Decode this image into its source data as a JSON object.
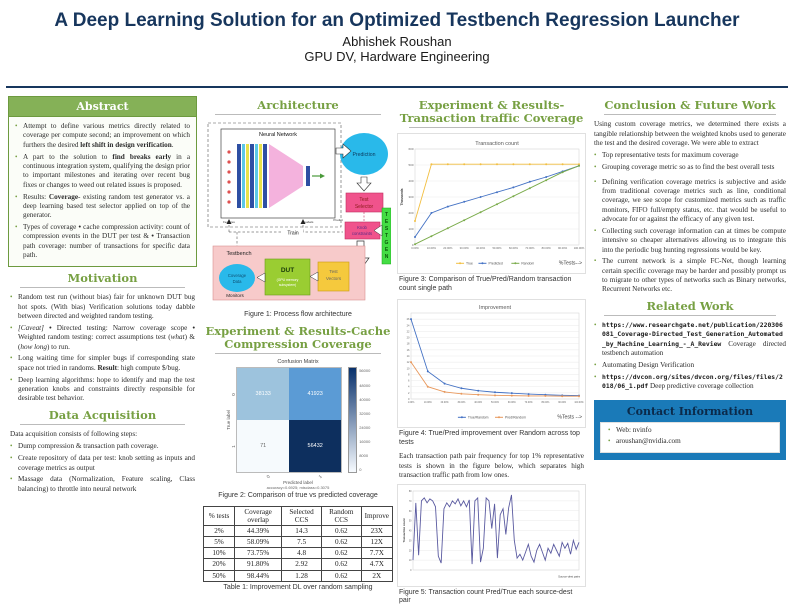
{
  "poster": {
    "title": "A Deep Learning Solution for an Optimized Testbench Regression Launcher",
    "author": "Abhishek Roushan",
    "affiliation": "GPU DV, Hardware Engineering"
  },
  "abstract": {
    "title": "Abstract",
    "items": [
      "Attempt to define various metrics directly related to coverage per compute second; an improvement on which furthers the desired <b>left shift in design verification</b>.",
      "A part to the solution to <b>find breaks early</b> in a continuous integration system, qualifying the design prior to important milestones and iterating over recent bug fixes or changes to weed out related issues is proposed.",
      "Results: <b>Coverage</b>- existing random test generator vs. a deep learning based test selector applied on top of the generator.",
      "Types of coverage <b>•</b> cache compression activity: count of compression events in the DUT per test &amp; <b>•</b> Transaction path coverage: number of transactions for specific data path."
    ]
  },
  "motivation": {
    "title": "Motivation",
    "items": [
      "Random test run (without bias) fair for unknown DUT bug hot spots. (With bias) Verification solutions today dabble between directed and weighted random testing.",
      "<i>[Caveat]</i> <b>•</b> Directed testing: Narrow coverage scope <b>•</b> Weighted random testing: correct assumptions test (<i>what</i>) &amp; (<i>how long</i>) to run.",
      "Long waiting time for simpler bugs if corresponding state space not tried in randoms. <b>Result</b>: high compute $/bug.",
      "Deep learning algorithms: hope to identify and map the test generation knobs and constraints directly responsible for desirable test behavior."
    ]
  },
  "data_acquisition": {
    "title": "Data Acquisition",
    "intro": "Data acquisition consists of following steps:",
    "items": [
      "Dump compression & transaction path coverage.",
      "Create repository of data per test: knob setting as inputs and coverage metrics as output",
      "Massage data (Normalization, Feature scaling, Class balancing) to throttle into neural network"
    ]
  },
  "architecture": {
    "title": "Architecture",
    "figure_caption": "Figure 1: Process flow architecture",
    "diagram": {
      "neural_network": "Neural Network",
      "prediction": "Prediction",
      "test_selector_1": "Test",
      "test_selector_2": "Selector",
      "knob_constraints_1": "Knob",
      "knob_constraints_2": "constraints",
      "testgen": "TESTGEN",
      "testbench": "Testbench",
      "coverage_data_1": "Coverage",
      "coverage_data_2": "Data",
      "dut": "DUT",
      "dut_sub_1": "(GPU memory",
      "dut_sub_2": "subsystem)",
      "test_vectors_1": "Test",
      "test_vectors_2": "Vectors",
      "monitors": "Monitors",
      "train": "Train",
      "features": "Features",
      "labels": "Labels",
      "predict": "Predict"
    }
  },
  "cache_experiment": {
    "title": "Experiment & Results-Cache Compression Coverage",
    "figure_caption": "Figure 2: Comparison of true vs predicted coverage",
    "confusion": {
      "title": "Confusion Matrix",
      "ylabel": "True label",
      "xlabel": "Predicted label",
      "accuracy_text": "accuracy=0.6925; misclass=0.3075",
      "row_labels": [
        "0",
        "1"
      ],
      "col_labels": [
        "0",
        "1"
      ],
      "cells": [
        {
          "v": "38133",
          "bg": "#9dc3dd",
          "fg": "#ffffff"
        },
        {
          "v": "41923",
          "bg": "#5b9bd5",
          "fg": "#ffffff"
        },
        {
          "v": "71",
          "bg": "#f6fafd",
          "fg": "#666666"
        },
        {
          "v": "56432",
          "bg": "#0d2f5e",
          "fg": "#ffffff"
        }
      ],
      "colorbar_ticks": [
        "56000",
        "48000",
        "40000",
        "32000",
        "24000",
        "16000",
        "8000",
        "0"
      ]
    },
    "table": {
      "caption": "Table 1: Improvement DL over random sampling",
      "headers": [
        "% tests",
        "Coverage overlap",
        "Selected CCS",
        "Random CCS",
        "Improve"
      ],
      "rows": [
        [
          "2%",
          "44.39%",
          "14.3",
          "0.62",
          "23X"
        ],
        [
          "5%",
          "58.09%",
          "7.5",
          "0.62",
          "12X"
        ],
        [
          "10%",
          "73.75%",
          "4.8",
          "0.62",
          "7.7X"
        ],
        [
          "20%",
          "91.80%",
          "2.92",
          "0.62",
          "4.7X"
        ],
        [
          "50%",
          "98.44%",
          "1.28",
          "0.62",
          "2X"
        ]
      ]
    }
  },
  "transaction_experiment": {
    "title": "Experiment & Results-Transaction traffic Coverage",
    "fig3_caption": "Figure 3: Comparison of True/Pred/Random transaction count single path",
    "fig4_caption": "Figure 4: True/Pred improvement over Random across top tests",
    "paragraph": "Each transaction path pair frequency for top 1% representative tests is shown in the figure below, which separates high transaction traffic path from low ones.",
    "fig5_caption": "Figure 5: Transaction count Pred/True each source-dest pair"
  },
  "chart_data": [
    {
      "id": "fig3",
      "type": "line",
      "title": "Transaction count",
      "ylabel": "Thousands",
      "xlabel": "%Tests-->",
      "ylim": [
        0,
        600
      ],
      "y_ticks": [
        0,
        100,
        200,
        300,
        400,
        500,
        600
      ],
      "x_ticks": [
        "0.00%",
        "10.00%",
        "20.00%",
        "30.00%",
        "40.00%",
        "50.00%",
        "60.00%",
        "70.00%",
        "80.00%",
        "90.00%",
        "100.00%"
      ],
      "legend_position": "bottom",
      "grid": true,
      "series": [
        {
          "name": "True",
          "color": "#f2bf41",
          "values": [
            150,
            505,
            505,
            505,
            505,
            505,
            505,
            505,
            505,
            505,
            505
          ]
        },
        {
          "name": "Predicted",
          "color": "#4472c4",
          "values": [
            50,
            200,
            240,
            270,
            300,
            330,
            360,
            395,
            425,
            460,
            495
          ]
        },
        {
          "name": "Random",
          "color": "#7aab4a",
          "values": [
            5,
            55,
            105,
            155,
            205,
            255,
            305,
            355,
            405,
            455,
            495
          ]
        }
      ]
    },
    {
      "id": "fig4",
      "type": "line",
      "title": "Improvement",
      "ylabel": "",
      "xlabel": "%Tests -->",
      "ylim": [
        0,
        28
      ],
      "y_ticks": [
        0,
        2,
        4,
        6,
        8,
        10,
        12,
        14,
        16,
        18,
        20,
        22,
        24,
        26
      ],
      "x_ticks": [
        "1.00%",
        "10.00%",
        "20.00%",
        "30.00%",
        "40.00%",
        "50.00%",
        "60.00%",
        "70.00%",
        "80.00%",
        "90.00%",
        "100.00%"
      ],
      "legend_position": "bottom",
      "grid": true,
      "series": [
        {
          "name": "True/Random",
          "color": "#4472c4",
          "values": [
            26,
            9,
            5,
            3.5,
            2.7,
            2.2,
            1.9,
            1.6,
            1.4,
            1.2,
            1.1
          ]
        },
        {
          "name": "Pred/Random",
          "color": "#e8985c",
          "values": [
            12,
            4,
            2.3,
            1.7,
            1.4,
            1.2,
            1.1,
            1.0,
            1.0,
            0.9,
            0.9
          ]
        }
      ]
    },
    {
      "id": "fig5",
      "type": "line",
      "title": "",
      "ylabel": "Transaction count",
      "xlabel": "Source-dest pairs",
      "ylim": [
        0,
        80
      ],
      "y_ticks": [
        0,
        10,
        20,
        30,
        40,
        50,
        60,
        70,
        80
      ],
      "x_ticks": [],
      "legend_position": "none",
      "grid": true,
      "series": [
        {
          "name": "Pred/True",
          "color": "#5a5aa0",
          "values": [
            10,
            68,
            15,
            70,
            73,
            68,
            72,
            70,
            64,
            14,
            7,
            62,
            68,
            64,
            70,
            67,
            72,
            65,
            70,
            64,
            71,
            6,
            70,
            73,
            8,
            22,
            73,
            70,
            42,
            67,
            12,
            56,
            62,
            36,
            63,
            76,
            30,
            12,
            16,
            10,
            18,
            26,
            14,
            8,
            20,
            26,
            18,
            10,
            22,
            17,
            26,
            20,
            14,
            28,
            22,
            27,
            16,
            30,
            21,
            28
          ]
        }
      ]
    }
  ],
  "conclusion": {
    "title": "Conclusion & Future Work",
    "intro": "Using custom coverage metrics, we determined there exists a tangible relationship between the weighted knobs used to generate the test and the desired coverage. We were able to extract",
    "items1": [
      "Top representative tests for maximum coverage",
      "Grouping coverage metric so as to find the best overall tests"
    ],
    "items2": [
      "Defining verification coverage metrics is subjective and aside from traditional coverage metrics such as line, conditional coverage, we see scope for customized metrics such as traffic monitors, FIFO full/empty status, etc. that would be useful to advocate for or against the efficacy of any given test.",
      "Collecting such coverage information can at times be compute intensive so cheaper alternatives allowing us to integrate this into the periodic bug hunting regressions would be key.",
      "The current network is a simple FC-Net, though learning certain specific coverage may be harder and possibly prompt us to migrate to other types of networks such as Binary networks, Recurrent Networks etc."
    ]
  },
  "related_work": {
    "title": "Related Work",
    "items": [
      {
        "url": "https://www.researchgate.net/publication/220306081_Coverage-Directed_Test_Generation_Automated_by_Machine_Learning_-_A_Review",
        "desc": " Coverage directed testbench automation"
      },
      {
        "url": "",
        "desc": "Automating Design Verification"
      },
      {
        "url": "https://dvcon.org/sites/dvcon.org/files/files/2018/06_1.pdf",
        "desc": " Deep predictive coverage collection"
      }
    ]
  },
  "contact": {
    "title": "Contact Information",
    "items": [
      "Web: nvinfo",
      "aroushan@nvidia.com"
    ]
  },
  "colors": {
    "navy": "#17365d",
    "green": "#77a043",
    "contact_blue": "#1a7ab8",
    "true_series": "#f2bf41",
    "pred_series": "#4472c4",
    "random_series": "#7aab4a"
  }
}
